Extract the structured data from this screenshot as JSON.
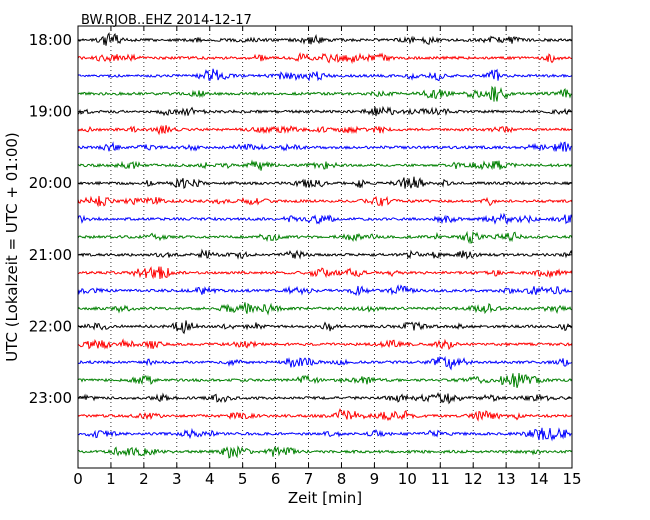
{
  "chart_data": {
    "type": "line",
    "title": "BW.RJOB..EHZ 2014-12-17",
    "xlabel": "Zeit  [min]",
    "ylabel": "UTC (Lokalzeit = UTC + 01:00)",
    "xlim": [
      0,
      15
    ],
    "x_ticks": [
      "0",
      "1",
      "2",
      "3",
      "4",
      "5",
      "6",
      "7",
      "8",
      "9",
      "10",
      "11",
      "12",
      "13",
      "14",
      "15"
    ],
    "y_tick_labels": [
      "18:00",
      "19:00",
      "20:00",
      "21:00",
      "22:00",
      "23:00"
    ],
    "trace_start": "18:00",
    "trace_interval_min": 15,
    "trace_count": 24,
    "grid": "vertical-dotted",
    "colors": [
      "#000000",
      "#ff0000",
      "#0000ff",
      "#008000"
    ]
  }
}
